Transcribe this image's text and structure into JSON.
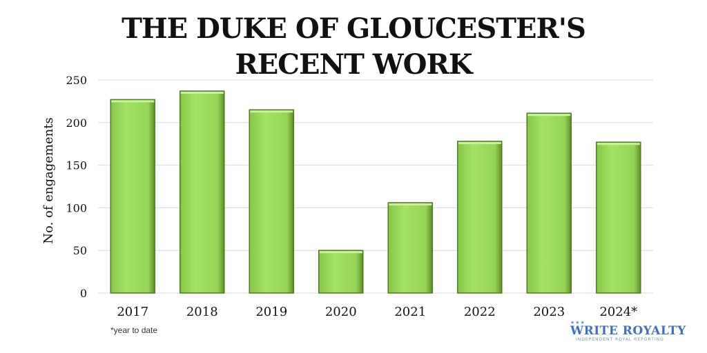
{
  "chart_data": {
    "type": "bar",
    "title": "THE DUKE OF GLOUCESTER'S\nRECENT WORK",
    "title_lines": [
      "THE DUKE OF GLOUCESTER'S",
      "RECENT WORK"
    ],
    "ylabel": "No. of engagements",
    "xlabel": "",
    "categories": [
      "2017",
      "2018",
      "2019",
      "2020",
      "2021",
      "2022",
      "2023",
      "2024*"
    ],
    "values": [
      227,
      237,
      215,
      50,
      106,
      178,
      211,
      177
    ],
    "ylim": [
      0,
      250
    ],
    "yticks": [
      0,
      50,
      100,
      150,
      200,
      250
    ],
    "grid": true,
    "legend": "none",
    "bar_color": "#9bdc5a",
    "bar_edge_color": "#4f7a1f"
  },
  "footnote": "*year to date",
  "brand": {
    "name": "WRITE ROYALTY",
    "tagline": "INDEPENDENT ROYAL REPORTING",
    "color": "#3d6fc4"
  }
}
